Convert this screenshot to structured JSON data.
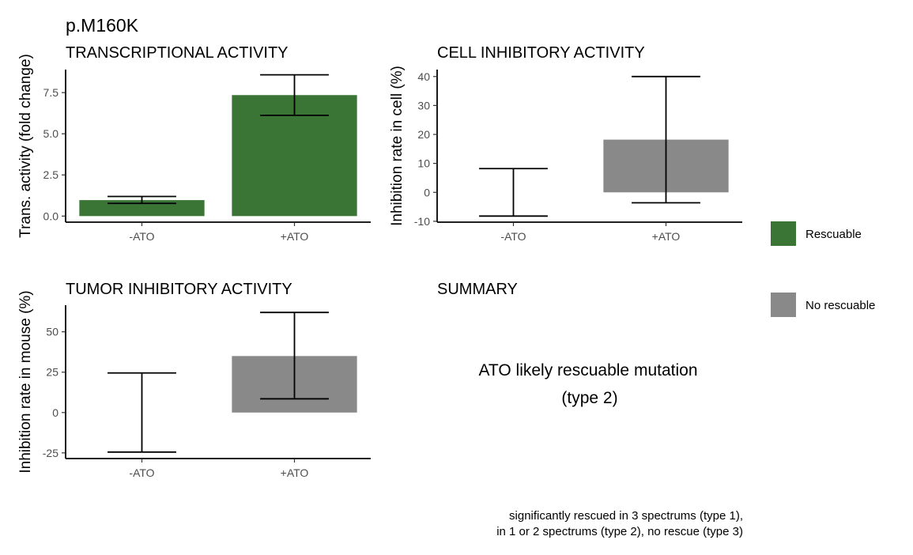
{
  "title": "p.M160K",
  "colors": {
    "rescuable": "#3a7535",
    "no_rescuable": "#898989"
  },
  "legend": [
    {
      "label": "Rescuable",
      "color": "#3a7535"
    },
    {
      "label": "No rescuable",
      "color": "#898989"
    }
  ],
  "summary": {
    "title": "SUMMARY",
    "line1": "ATO likely rescuable mutation",
    "line2": "(type 2)"
  },
  "caption": {
    "line1": "significantly rescued in 3 spectrums (type 1),",
    "line2": "in 1 or 2 spectrums (type 2), no rescue (type 3)"
  },
  "chart_data": [
    {
      "type": "bar",
      "title": "TRANSCRIPTIONAL ACTIVITY",
      "ylabel": "Trans. activity (fold change)",
      "categories": [
        "-ATO",
        "+ATO"
      ],
      "values": [
        0.97,
        7.35
      ],
      "error_low": [
        0.77,
        6.12
      ],
      "error_high": [
        1.19,
        8.58
      ],
      "bar_colors": [
        "#3a7535",
        "#3a7535"
      ],
      "ylim": [
        -0.37,
        8.9
      ],
      "yticks": [
        0.0,
        2.5,
        5.0,
        7.5
      ],
      "ytick_labels": [
        "0.0",
        "2.5",
        "5.0",
        "7.5"
      ]
    },
    {
      "type": "bar",
      "title": "CELL INHIBITORY ACTIVITY",
      "ylabel": "Inhibition rate in cell (%)",
      "categories": [
        "-ATO",
        "+ATO"
      ],
      "values": [
        0,
        18.2
      ],
      "error_low": [
        -8.2,
        -3.6
      ],
      "error_high": [
        8.2,
        40.0
      ],
      "bar_colors": [
        "#898989",
        "#898989"
      ],
      "ylim": [
        -10.3,
        42.4
      ],
      "yticks": [
        -10,
        0,
        10,
        20,
        30,
        40
      ],
      "ytick_labels": [
        "-10",
        "0",
        "10",
        "20",
        "30",
        "40"
      ]
    },
    {
      "type": "bar",
      "title": "TUMOR INHIBITORY ACTIVITY",
      "ylabel": "Inhibition rate in mouse (%)",
      "categories": [
        "-ATO",
        "+ATO"
      ],
      "values": [
        0,
        35.0
      ],
      "error_low": [
        -24.5,
        8.5
      ],
      "error_high": [
        24.5,
        62.0
      ],
      "bar_colors": [
        "#898989",
        "#898989"
      ],
      "ylim": [
        -28.5,
        66.5
      ],
      "yticks": [
        -25,
        0,
        25,
        50
      ],
      "ytick_labels": [
        "-25",
        "0",
        "25",
        "50"
      ]
    }
  ]
}
